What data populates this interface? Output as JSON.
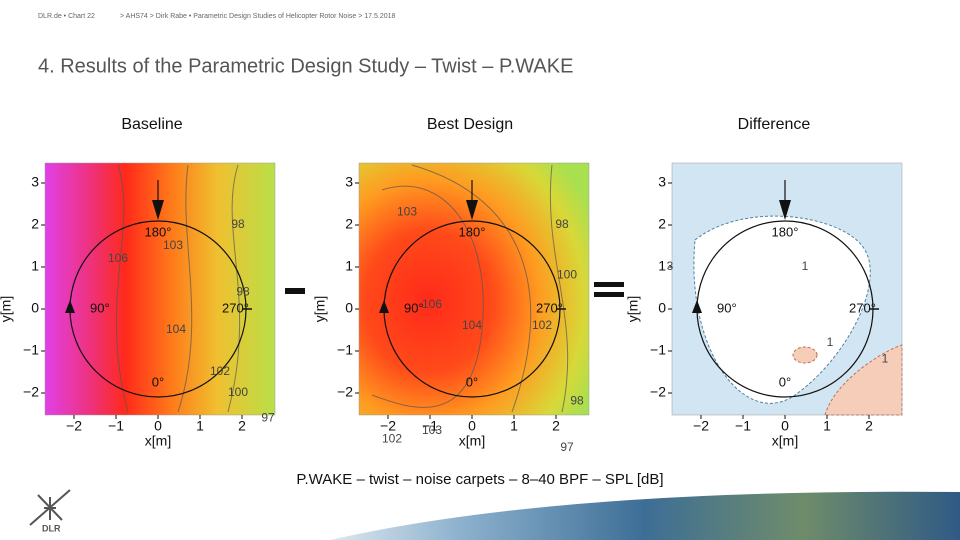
{
  "header": {
    "breadcrumb": "DLR.de • Chart 22",
    "path": "> AHS74 > Dirk Rabe • Parametric Design Studies of Helicopter Rotor Noise > 17.5.2018"
  },
  "title": "4. Results of the Parametric Design Study – Twist – P.WAKE",
  "panels": [
    {
      "title": "Baseline",
      "x_label": "x[m]",
      "y_label": "y[m]",
      "x_ticks": [
        "−2",
        "−1",
        "0",
        "1",
        "2"
      ],
      "y_ticks": [
        "3",
        "2",
        "1",
        "0",
        "−1",
        "−2"
      ],
      "azimuth_labels": [
        "180°",
        "90°",
        "270°",
        "0°"
      ],
      "contour_labels": [
        "97",
        "100",
        "102",
        "98",
        "104",
        "106",
        "103",
        "98"
      ]
    },
    {
      "title": "Best Design",
      "x_label": "x[m]",
      "y_label": "y[m]",
      "x_ticks": [
        "−2",
        "−1",
        "0",
        "1",
        "2"
      ],
      "y_ticks": [
        "3",
        "2",
        "1",
        "0",
        "−1",
        "−2"
      ],
      "azimuth_labels": [
        "180°",
        "90°",
        "270°",
        "0°"
      ],
      "contour_labels": [
        "102",
        "103",
        "97",
        "98",
        "106",
        "104",
        "102",
        "100",
        "98",
        "103"
      ]
    },
    {
      "title": "Difference",
      "x_label": "x[m]",
      "y_label": "y[m]",
      "x_ticks": [
        "−2",
        "−1",
        "0",
        "1",
        "2"
      ],
      "y_ticks": [
        "3",
        "2",
        "1",
        "0",
        "−1",
        "−2"
      ],
      "azimuth_labels": [
        "180°",
        "90°",
        "270°",
        "0°"
      ],
      "contour_labels": [
        "3",
        "1",
        "1",
        "1"
      ]
    }
  ],
  "caption": "P.WAKE – twist – noise carpets – 8–40 BPF – SPL [dB]",
  "logo": "DLR"
}
